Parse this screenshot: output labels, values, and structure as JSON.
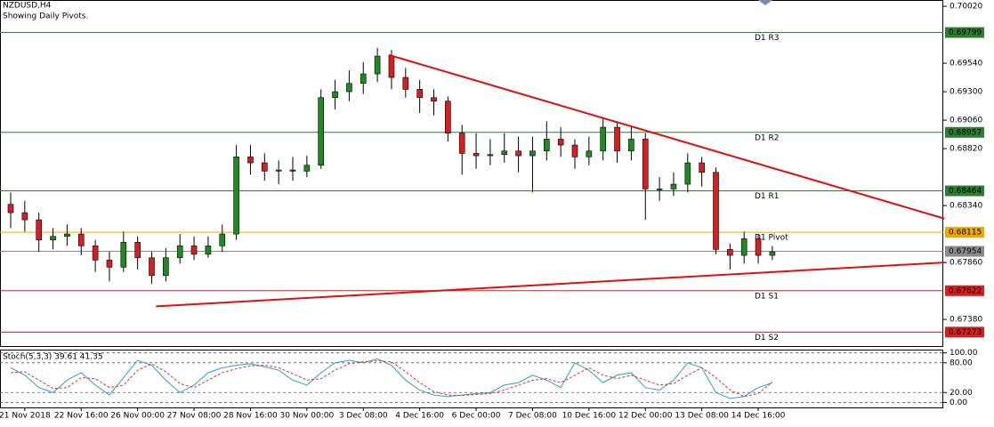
{
  "chart_data": [
    {
      "type": "candlestick",
      "title": "NZDUSD,H4",
      "subtitle": "Showing Daily Pivots.",
      "categories": [
        null,
        "21 Nov 2018",
        null,
        null,
        null,
        "22 Nov 16:00",
        null,
        null,
        null,
        "26 Nov 00:00",
        null,
        null,
        null,
        "27 Nov 08:00",
        null,
        null,
        null,
        "28 Nov 16:00",
        null,
        null,
        null,
        "30 Nov 00:00",
        null,
        null,
        null,
        "3 Dec 08:00",
        null,
        null,
        null,
        "4 Dec 16:00",
        null,
        null,
        null,
        "6 Dec 00:00",
        null,
        null,
        null,
        "7 Dec 08:00",
        null,
        null,
        null,
        "10 Dec 16:00",
        null,
        null,
        null,
        "12 Dec 00:00",
        null,
        null,
        null,
        "13 Dec 08:00",
        null,
        null,
        null,
        "14 Dec 16:00",
        null
      ],
      "open": [
        0.6835,
        0.6828,
        0.6822,
        0.6805,
        0.6808,
        0.681,
        0.68,
        0.6788,
        0.6782,
        0.6803,
        0.679,
        0.6775,
        0.679,
        0.68,
        0.6793,
        0.68,
        0.681,
        0.6875,
        0.687,
        0.6863,
        0.6864,
        0.6863,
        0.6868,
        0.6925,
        0.693,
        0.6937,
        0.6945,
        0.696,
        0.6942,
        0.6932,
        0.6925,
        0.6922,
        0.6895,
        0.6878,
        0.6876,
        0.6877,
        0.688,
        0.6876,
        0.688,
        0.689,
        0.6885,
        0.6875,
        0.688,
        0.69,
        0.688,
        0.689,
        0.6848,
        0.6848,
        0.6852,
        0.687,
        0.6862,
        0.6797,
        0.6792,
        0.6806,
        0.6792
      ],
      "high": [
        0.6845,
        0.6838,
        0.6828,
        0.6815,
        0.6818,
        0.6815,
        0.6805,
        0.6795,
        0.6812,
        0.6808,
        0.6795,
        0.6798,
        0.681,
        0.6808,
        0.6808,
        0.6818,
        0.6885,
        0.6885,
        0.6878,
        0.6872,
        0.6875,
        0.6876,
        0.6932,
        0.694,
        0.6948,
        0.6955,
        0.6967,
        0.6965,
        0.695,
        0.694,
        0.6932,
        0.6926,
        0.6902,
        0.6895,
        0.689,
        0.6895,
        0.6892,
        0.6892,
        0.6905,
        0.69,
        0.689,
        0.6892,
        0.6908,
        0.6905,
        0.69,
        0.6895,
        0.6858,
        0.6862,
        0.6878,
        0.6875,
        0.6866,
        0.6802,
        0.6812,
        0.681,
        0.68
      ],
      "low": [
        0.6815,
        0.6812,
        0.6795,
        0.6797,
        0.68,
        0.6792,
        0.6778,
        0.677,
        0.6778,
        0.678,
        0.6768,
        0.677,
        0.6785,
        0.6788,
        0.679,
        0.6795,
        0.6805,
        0.686,
        0.6855,
        0.6852,
        0.6855,
        0.6858,
        0.6865,
        0.6915,
        0.6922,
        0.6928,
        0.6938,
        0.6932,
        0.6925,
        0.6912,
        0.691,
        0.6888,
        0.686,
        0.6865,
        0.6868,
        0.687,
        0.6862,
        0.6845,
        0.6872,
        0.6875,
        0.6865,
        0.6868,
        0.6872,
        0.687,
        0.6872,
        0.6822,
        0.6838,
        0.6842,
        0.6845,
        0.685,
        0.6793,
        0.678,
        0.6785,
        0.6785,
        0.6788
      ],
      "close": [
        0.6828,
        0.6822,
        0.6805,
        0.6808,
        0.681,
        0.68,
        0.6788,
        0.6782,
        0.6803,
        0.679,
        0.6775,
        0.679,
        0.68,
        0.6793,
        0.68,
        0.681,
        0.6875,
        0.687,
        0.6863,
        0.6864,
        0.6863,
        0.6868,
        0.6925,
        0.693,
        0.6937,
        0.6945,
        0.696,
        0.6942,
        0.6932,
        0.6925,
        0.6922,
        0.6895,
        0.6878,
        0.6876,
        0.6877,
        0.688,
        0.6876,
        0.688,
        0.689,
        0.6885,
        0.6875,
        0.688,
        0.69,
        0.688,
        0.689,
        0.6848,
        0.6848,
        0.6852,
        0.687,
        0.6862,
        0.6797,
        0.6792,
        0.6806,
        0.6792,
        0.6795
      ],
      "up_color": "#1f8a1f",
      "down_color": "#d42020",
      "ylim": [
        0.67163,
        0.70073
      ],
      "yticks": [
        {
          "value": 0.7002,
          "label": "0.70020"
        },
        {
          "value": 0.6954,
          "label": "0.69540"
        },
        {
          "value": 0.693,
          "label": "0.69300"
        },
        {
          "value": 0.6906,
          "label": "0.69060"
        },
        {
          "value": 0.6882,
          "label": "0.68820"
        },
        {
          "value": 0.6834,
          "label": "0.68340"
        },
        {
          "value": 0.6786,
          "label": "0.67860"
        },
        {
          "value": 0.6738,
          "label": "0.67380"
        }
      ],
      "levels": [
        {
          "name": "D1 R3",
          "value": 0.69799,
          "color": "#2e7d32"
        },
        {
          "name": "D1 R2",
          "value": 0.68957,
          "color": "#2e7d32"
        },
        {
          "name": "D1 R1",
          "value": 0.68464,
          "color": "#2e7d32"
        },
        {
          "name": "D1 Pivot",
          "value": 0.68115,
          "color": "#f0a800"
        },
        {
          "value": 0.67954,
          "color": "#8a8a8a"
        },
        {
          "name": "D1 S1",
          "value": 0.67622,
          "color": "#d42020"
        },
        {
          "name": "D1 S2",
          "value": 0.67273,
          "color": "#d42020"
        }
      ],
      "trendlines": [
        {
          "color": "#e01010",
          "x": [
            10.3,
            66.2
          ],
          "y": [
            0.6749,
            0.6786
          ]
        },
        {
          "color": "#e01010",
          "x": [
            26.8,
            66.2
          ],
          "y": [
            0.6961,
            0.6823
          ]
        }
      ]
    },
    {
      "type": "line",
      "title": "Stoch(5,3,3) 39.61 41.35",
      "series": [
        {
          "color": "#2aa0c8",
          "dash": false,
          "values": [
            70,
            55,
            30,
            20,
            45,
            60,
            35,
            15,
            50,
            85,
            75,
            45,
            20,
            35,
            60,
            70,
            75,
            78,
            72,
            65,
            45,
            35,
            60,
            80,
            85,
            80,
            88,
            75,
            45,
            25,
            15,
            12,
            15,
            18,
            20,
            35,
            40,
            55,
            45,
            30,
            80,
            65,
            40,
            55,
            60,
            30,
            25,
            45,
            80,
            70,
            20,
            8,
            12,
            30,
            39.61
          ]
        },
        {
          "color": "#e03030",
          "dash": true,
          "values": [
            60,
            62,
            45,
            28,
            30,
            50,
            48,
            30,
            35,
            65,
            78,
            62,
            38,
            30,
            45,
            60,
            68,
            74,
            75,
            70,
            58,
            45,
            48,
            65,
            78,
            82,
            84,
            82,
            62,
            40,
            22,
            15,
            14,
            16,
            18,
            25,
            35,
            45,
            48,
            40,
            55,
            70,
            55,
            48,
            55,
            45,
            35,
            38,
            55,
            70,
            50,
            25,
            12,
            18,
            41.35
          ]
        }
      ],
      "ylim": [
        -10,
        103
      ],
      "yticks": [
        {
          "value": 100,
          "label": "100.00"
        },
        {
          "value": 80,
          "label": "80.00"
        },
        {
          "value": 20,
          "label": "20.00"
        },
        {
          "value": 0,
          "label": "0.00"
        }
      ],
      "grid": true
    }
  ]
}
